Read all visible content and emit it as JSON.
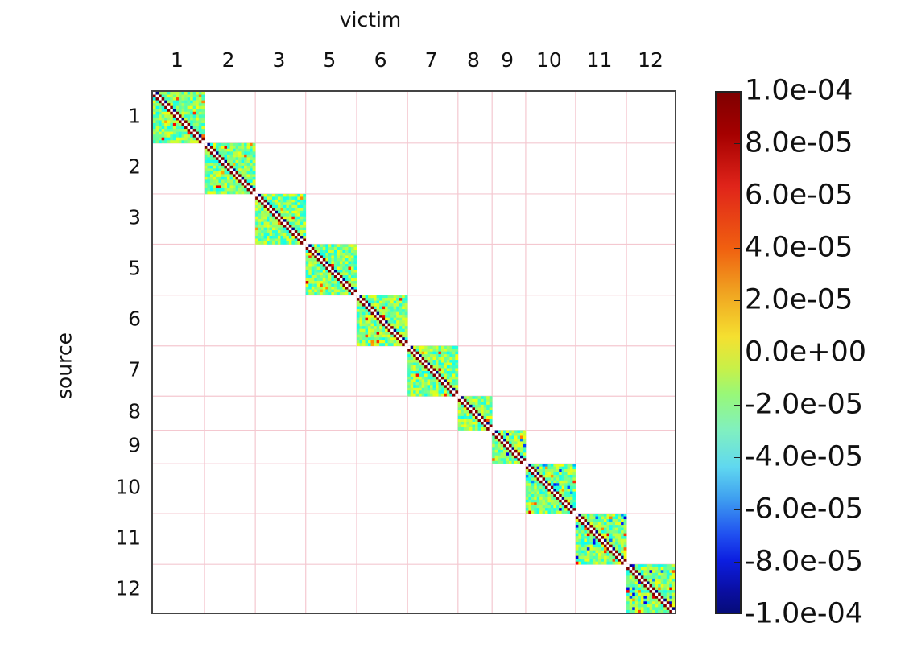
{
  "chart_data": {
    "type": "heatmap",
    "title": "",
    "xlabel": "victim",
    "ylabel": "source",
    "x_tick_labels": [
      "1",
      "2",
      "3",
      "5",
      "6",
      "7",
      "8",
      "9",
      "10",
      "11",
      "12"
    ],
    "y_tick_labels": [
      "1",
      "2",
      "3",
      "5",
      "6",
      "7",
      "8",
      "9",
      "10",
      "11",
      "12"
    ],
    "block_boundaries_fraction": [
      0,
      0.098,
      0.195,
      0.291,
      0.388,
      0.485,
      0.581,
      0.646,
      0.71,
      0.805,
      0.902,
      1.0
    ],
    "block_sizes_cells": [
      18,
      18,
      18,
      18,
      18,
      18,
      12,
      12,
      18,
      18,
      18
    ],
    "structure": "block-diagonal; off-diagonal blocks empty (white); within-block values near 0 (green/cyan/yellow), with alternating strong positive (~1e-4, dark red) and negative (~-1e-4, dark blue) entries along the main diagonal and its neighbors",
    "colormap": "jet",
    "colorbar": {
      "min": -0.0001,
      "max": 0.0001,
      "ticks": [
        "1.0e-04",
        "8.0e-05",
        "6.0e-05",
        "4.0e-05",
        "2.0e-05",
        "0.0e+00",
        "-2.0e-05",
        "-4.0e-05",
        "-6.0e-05",
        "-8.0e-05",
        "-1.0e-04"
      ]
    },
    "grid": true,
    "grid_color": "#f4c8d0"
  },
  "labels": {
    "xlabel": "victim",
    "ylabel": "source"
  }
}
